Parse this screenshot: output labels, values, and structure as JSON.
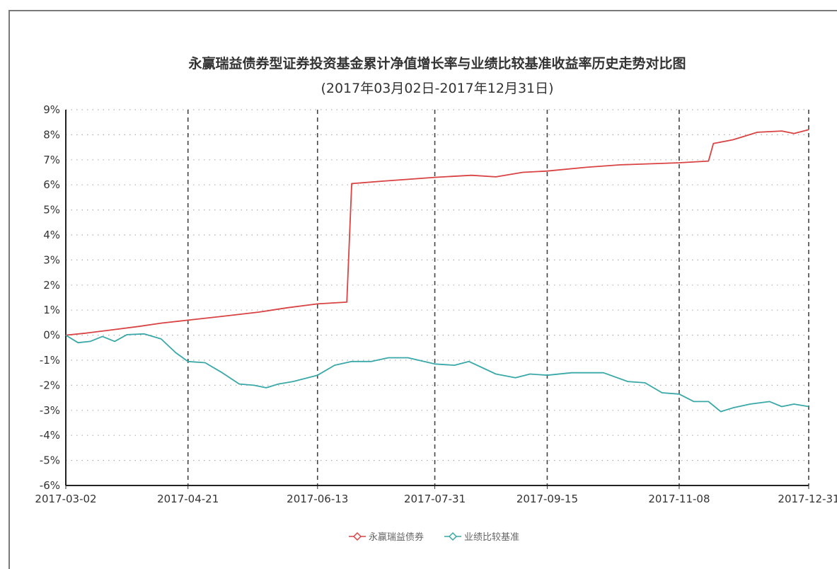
{
  "chart_data": {
    "type": "line",
    "title": "永赢瑞益债券型证券投资基金累计净值增长率与业绩比较基准收益率历史走势对比图",
    "subtitle": "(2017年03月02日-2017年12月31日)",
    "ylim": [
      -6,
      9
    ],
    "y_ticks": [
      "9%",
      "8%",
      "7%",
      "6%",
      "5%",
      "4%",
      "3%",
      "2%",
      "1%",
      "0%",
      "-1%",
      "-2%",
      "-3%",
      "-4%",
      "-5%",
      "-6%"
    ],
    "x_ticks": [
      "2017-03-02",
      "2017-04-21",
      "2017-06-13",
      "2017-07-31",
      "2017-09-15",
      "2017-11-08",
      "2017-12-31"
    ],
    "grid": true,
    "legend_position": "bottom-center",
    "series": [
      {
        "name": "永赢瑞益债券",
        "color": "#d94343",
        "points": [
          [
            "2017-03-02",
            0.0
          ],
          [
            "2017-03-10",
            0.08
          ],
          [
            "2017-03-20",
            0.2
          ],
          [
            "2017-04-01",
            0.35
          ],
          [
            "2017-04-10",
            0.48
          ],
          [
            "2017-04-21",
            0.6
          ],
          [
            "2017-05-05",
            0.75
          ],
          [
            "2017-05-20",
            0.92
          ],
          [
            "2017-06-01",
            1.1
          ],
          [
            "2017-06-13",
            1.25
          ],
          [
            "2017-06-25",
            1.32
          ],
          [
            "2017-06-27",
            6.05
          ],
          [
            "2017-07-10",
            6.15
          ],
          [
            "2017-07-31",
            6.3
          ],
          [
            "2017-08-15",
            6.38
          ],
          [
            "2017-08-25",
            6.32
          ],
          [
            "2017-09-05",
            6.5
          ],
          [
            "2017-09-15",
            6.55
          ],
          [
            "2017-10-01",
            6.7
          ],
          [
            "2017-10-15",
            6.8
          ],
          [
            "2017-11-08",
            6.88
          ],
          [
            "2017-11-20",
            6.95
          ],
          [
            "2017-11-22",
            7.65
          ],
          [
            "2017-11-30",
            7.8
          ],
          [
            "2017-12-10",
            8.1
          ],
          [
            "2017-12-20",
            8.15
          ],
          [
            "2017-12-25",
            8.05
          ],
          [
            "2017-12-31",
            8.2
          ]
        ]
      },
      {
        "name": "业绩比较基准",
        "color": "#3aa8a8",
        "points": [
          [
            "2017-03-02",
            0.0
          ],
          [
            "2017-03-07",
            -0.3
          ],
          [
            "2017-03-12",
            -0.25
          ],
          [
            "2017-03-17",
            -0.05
          ],
          [
            "2017-03-22",
            -0.25
          ],
          [
            "2017-03-27",
            0.02
          ],
          [
            "2017-04-03",
            0.05
          ],
          [
            "2017-04-10",
            -0.15
          ],
          [
            "2017-04-16",
            -0.7
          ],
          [
            "2017-04-21",
            -1.05
          ],
          [
            "2017-04-28",
            -1.1
          ],
          [
            "2017-05-05",
            -1.5
          ],
          [
            "2017-05-12",
            -1.95
          ],
          [
            "2017-05-18",
            -2.0
          ],
          [
            "2017-05-23",
            -2.1
          ],
          [
            "2017-05-28",
            -1.95
          ],
          [
            "2017-06-03",
            -1.85
          ],
          [
            "2017-06-13",
            -1.6
          ],
          [
            "2017-06-20",
            -1.2
          ],
          [
            "2017-06-27",
            -1.05
          ],
          [
            "2017-07-05",
            -1.05
          ],
          [
            "2017-07-12",
            -0.9
          ],
          [
            "2017-07-20",
            -0.9
          ],
          [
            "2017-07-31",
            -1.15
          ],
          [
            "2017-08-08",
            -1.2
          ],
          [
            "2017-08-14",
            -1.05
          ],
          [
            "2017-08-25",
            -1.55
          ],
          [
            "2017-09-02",
            -1.7
          ],
          [
            "2017-09-08",
            -1.55
          ],
          [
            "2017-09-15",
            -1.6
          ],
          [
            "2017-09-25",
            -1.5
          ],
          [
            "2017-10-08",
            -1.5
          ],
          [
            "2017-10-18",
            -1.85
          ],
          [
            "2017-10-25",
            -1.9
          ],
          [
            "2017-11-01",
            -2.3
          ],
          [
            "2017-11-08",
            -2.35
          ],
          [
            "2017-11-14",
            -2.65
          ],
          [
            "2017-11-20",
            -2.65
          ],
          [
            "2017-11-25",
            -3.05
          ],
          [
            "2017-11-30",
            -2.9
          ],
          [
            "2017-12-07",
            -2.75
          ],
          [
            "2017-12-15",
            -2.65
          ],
          [
            "2017-12-20",
            -2.85
          ],
          [
            "2017-12-25",
            -2.75
          ],
          [
            "2017-12-31",
            -2.85
          ]
        ]
      }
    ]
  }
}
